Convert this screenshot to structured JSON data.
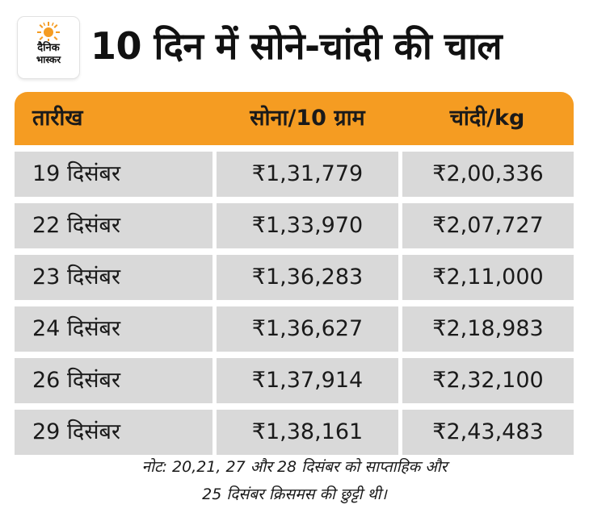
{
  "logo": {
    "line1": "दैनिक",
    "line2": "भास्कर",
    "sun_color": "#f59c22"
  },
  "title": "10 दिन में सोने-चांदी की चाल",
  "table": {
    "headers": [
      "तारीख",
      "सोना/10 ग्राम",
      "चांदी/kg"
    ],
    "rows": [
      [
        "19 दिसंबर",
        "₹1,31,779",
        "₹2,00,336"
      ],
      [
        "22 दिसंबर",
        "₹1,33,970",
        "₹2,07,727"
      ],
      [
        "23 दिसंबर",
        "₹1,36,283",
        "₹2,11,000"
      ],
      [
        "24 दिसंबर",
        "₹1,36,627",
        "₹2,18,983"
      ],
      [
        "26 दिसंबर",
        "₹1,37,914",
        "₹2,32,100"
      ],
      [
        "29 दिसंबर",
        "₹1,38,161",
        "₹2,43,483"
      ]
    ],
    "header_color": "#f59c22",
    "cell_color": "#d9d9d9"
  },
  "note": {
    "line1": "नोट: 20,21, 27 और 28 दिसंबर को साप्ताहिक और",
    "line2": "25 दिसंबर क्रिसमस की छुट्टी थी।"
  }
}
